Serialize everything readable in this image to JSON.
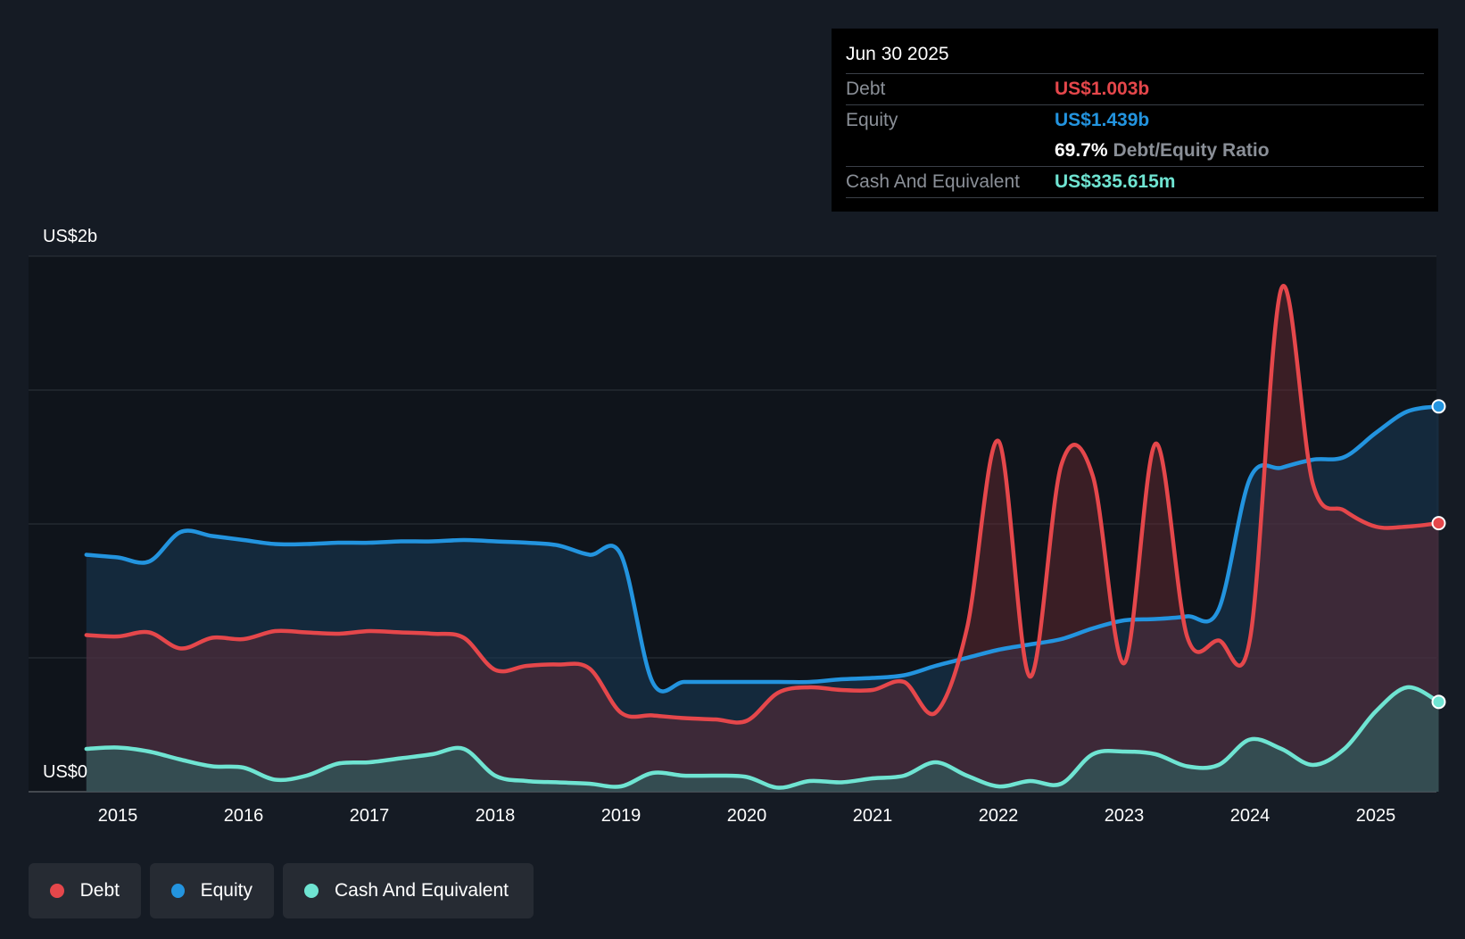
{
  "tooltip": {
    "date": "Jun 30 2025",
    "debt_label": "Debt",
    "debt_value": "US$1.003b",
    "equity_label": "Equity",
    "equity_value": "US$1.439b",
    "ratio_value": "69.7%",
    "ratio_label": "Debt/Equity Ratio",
    "cash_label": "Cash And Equivalent",
    "cash_value": "US$335.615m"
  },
  "legend": {
    "debt": "Debt",
    "equity": "Equity",
    "cash": "Cash And Equivalent"
  },
  "colors": {
    "debt": "#e5474b",
    "equity": "#2394df",
    "cash": "#6fe4d2",
    "background": "#151b24"
  },
  "chart_data": {
    "type": "area",
    "y_unit": "US$ billions",
    "ylim": [
      0,
      2
    ],
    "xlim": [
      2014.75,
      2025.5
    ],
    "y_tick_labels": [
      {
        "value": 2,
        "label": "US$2b"
      },
      {
        "value": 0,
        "label": "US$0"
      }
    ],
    "y_gridlines": [
      0,
      0.5,
      1,
      1.5,
      2
    ],
    "x_ticks": [
      "2015",
      "2016",
      "2017",
      "2018",
      "2019",
      "2020",
      "2021",
      "2022",
      "2023",
      "2024",
      "2025"
    ],
    "series": [
      {
        "name": "Debt",
        "points": [
          [
            2014.75,
            0.585
          ],
          [
            2015.0,
            0.58
          ],
          [
            2015.25,
            0.595
          ],
          [
            2015.5,
            0.535
          ],
          [
            2015.75,
            0.575
          ],
          [
            2016.0,
            0.57
          ],
          [
            2016.25,
            0.6
          ],
          [
            2016.5,
            0.595
          ],
          [
            2016.75,
            0.59
          ],
          [
            2017.0,
            0.6
          ],
          [
            2017.25,
            0.595
          ],
          [
            2017.5,
            0.59
          ],
          [
            2017.75,
            0.575
          ],
          [
            2018.0,
            0.455
          ],
          [
            2018.25,
            0.47
          ],
          [
            2018.5,
            0.475
          ],
          [
            2018.75,
            0.46
          ],
          [
            2019.0,
            0.295
          ],
          [
            2019.25,
            0.285
          ],
          [
            2019.5,
            0.275
          ],
          [
            2019.75,
            0.27
          ],
          [
            2020.0,
            0.265
          ],
          [
            2020.25,
            0.37
          ],
          [
            2020.5,
            0.39
          ],
          [
            2020.75,
            0.38
          ],
          [
            2021.0,
            0.38
          ],
          [
            2021.25,
            0.41
          ],
          [
            2021.5,
            0.295
          ],
          [
            2021.75,
            0.61
          ],
          [
            2022.0,
            1.31
          ],
          [
            2022.25,
            0.43
          ],
          [
            2022.5,
            1.22
          ],
          [
            2022.75,
            1.18
          ],
          [
            2023.0,
            0.48
          ],
          [
            2023.25,
            1.3
          ],
          [
            2023.5,
            0.58
          ],
          [
            2023.75,
            0.565
          ],
          [
            2024.0,
            0.57
          ],
          [
            2024.25,
            1.88
          ],
          [
            2024.5,
            1.15
          ],
          [
            2024.75,
            1.05
          ],
          [
            2025.0,
            0.99
          ],
          [
            2025.25,
            0.99
          ],
          [
            2025.5,
            1.003
          ]
        ]
      },
      {
        "name": "Equity",
        "points": [
          [
            2014.75,
            0.885
          ],
          [
            2015.0,
            0.875
          ],
          [
            2015.25,
            0.86
          ],
          [
            2015.5,
            0.97
          ],
          [
            2015.75,
            0.955
          ],
          [
            2016.0,
            0.94
          ],
          [
            2016.25,
            0.925
          ],
          [
            2016.5,
            0.925
          ],
          [
            2016.75,
            0.93
          ],
          [
            2017.0,
            0.93
          ],
          [
            2017.25,
            0.935
          ],
          [
            2017.5,
            0.935
          ],
          [
            2017.75,
            0.94
          ],
          [
            2018.0,
            0.935
          ],
          [
            2018.25,
            0.93
          ],
          [
            2018.5,
            0.92
          ],
          [
            2018.75,
            0.885
          ],
          [
            2019.0,
            0.885
          ],
          [
            2019.25,
            0.41
          ],
          [
            2019.5,
            0.41
          ],
          [
            2019.75,
            0.41
          ],
          [
            2020.0,
            0.41
          ],
          [
            2020.25,
            0.41
          ],
          [
            2020.5,
            0.41
          ],
          [
            2020.75,
            0.42
          ],
          [
            2021.0,
            0.425
          ],
          [
            2021.25,
            0.435
          ],
          [
            2021.5,
            0.47
          ],
          [
            2021.75,
            0.5
          ],
          [
            2022.0,
            0.53
          ],
          [
            2022.25,
            0.55
          ],
          [
            2022.5,
            0.57
          ],
          [
            2022.75,
            0.61
          ],
          [
            2023.0,
            0.64
          ],
          [
            2023.25,
            0.645
          ],
          [
            2023.5,
            0.655
          ],
          [
            2023.75,
            0.68
          ],
          [
            2024.0,
            1.17
          ],
          [
            2024.25,
            1.21
          ],
          [
            2024.5,
            1.24
          ],
          [
            2024.75,
            1.25
          ],
          [
            2025.0,
            1.34
          ],
          [
            2025.25,
            1.42
          ],
          [
            2025.5,
            1.439
          ]
        ]
      },
      {
        "name": "Cash And Equivalent",
        "points": [
          [
            2014.75,
            0.16
          ],
          [
            2015.0,
            0.165
          ],
          [
            2015.25,
            0.15
          ],
          [
            2015.5,
            0.12
          ],
          [
            2015.75,
            0.095
          ],
          [
            2016.0,
            0.09
          ],
          [
            2016.25,
            0.045
          ],
          [
            2016.5,
            0.06
          ],
          [
            2016.75,
            0.105
          ],
          [
            2017.0,
            0.11
          ],
          [
            2017.25,
            0.125
          ],
          [
            2017.5,
            0.14
          ],
          [
            2017.75,
            0.16
          ],
          [
            2018.0,
            0.06
          ],
          [
            2018.25,
            0.04
          ],
          [
            2018.5,
            0.035
          ],
          [
            2018.75,
            0.03
          ],
          [
            2019.0,
            0.02
          ],
          [
            2019.25,
            0.07
          ],
          [
            2019.5,
            0.06
          ],
          [
            2019.75,
            0.06
          ],
          [
            2020.0,
            0.055
          ],
          [
            2020.25,
            0.015
          ],
          [
            2020.5,
            0.04
          ],
          [
            2020.75,
            0.035
          ],
          [
            2021.0,
            0.05
          ],
          [
            2021.25,
            0.06
          ],
          [
            2021.5,
            0.11
          ],
          [
            2021.75,
            0.06
          ],
          [
            2022.0,
            0.02
          ],
          [
            2022.25,
            0.04
          ],
          [
            2022.5,
            0.03
          ],
          [
            2022.75,
            0.14
          ],
          [
            2023.0,
            0.15
          ],
          [
            2023.25,
            0.14
          ],
          [
            2023.5,
            0.095
          ],
          [
            2023.75,
            0.1
          ],
          [
            2024.0,
            0.195
          ],
          [
            2024.25,
            0.16
          ],
          [
            2024.5,
            0.1
          ],
          [
            2024.75,
            0.16
          ],
          [
            2025.0,
            0.3
          ],
          [
            2025.25,
            0.39
          ],
          [
            2025.5,
            0.335615
          ]
        ]
      }
    ]
  }
}
